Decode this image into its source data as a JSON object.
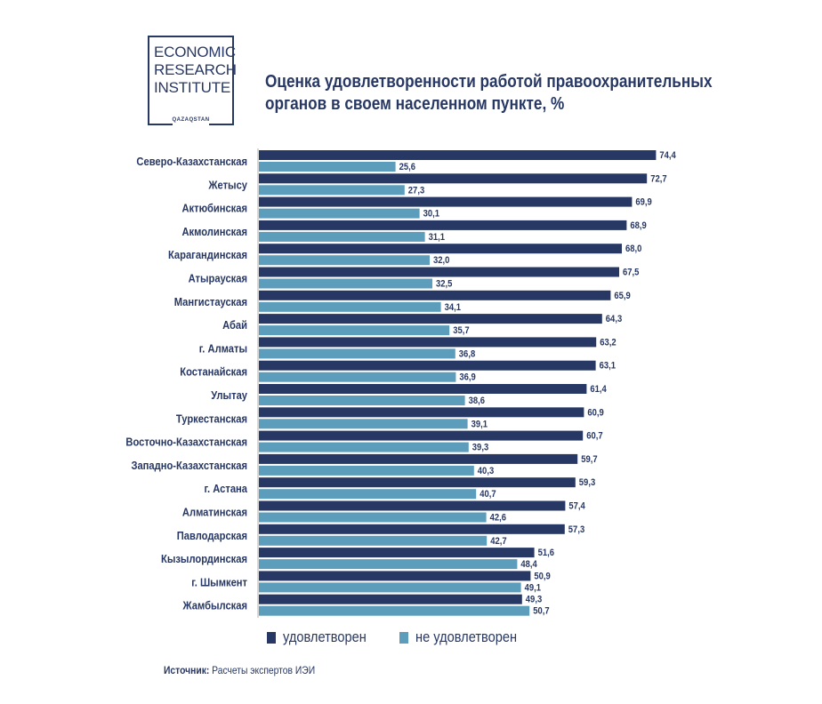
{
  "logo": {
    "lines": [
      "ECONOMIC",
      "RESEARCH",
      "INSTITUTE"
    ],
    "sub": "QAZAQSTAN"
  },
  "title_lines": [
    "Оценка удовлетворенности работой правоохранительных",
    "органов в своем населенном пункте, %"
  ],
  "source": {
    "label": "Источник:",
    "text": "Расчеты экспертов ИЭИ"
  },
  "colors": {
    "satisfied": "#283864",
    "not_satisfied": "#5b9dba",
    "text": "#283864",
    "axis": "#b0b0b0"
  },
  "chart_data": {
    "type": "bar",
    "orientation": "horizontal",
    "title": "Оценка удовлетворенности работой правоохранительных органов в своем населенном пункте, %",
    "categories": [
      "Северо-Казахстанская",
      "Жетысу",
      "Актюбинская",
      "Акмолинская",
      "Карагандинская",
      "Атырауская",
      "Мангистауская",
      "Абай",
      "г. Алматы",
      "Костанайская",
      "Улытау",
      "Туркестанская",
      "Восточно-Казахстанская",
      "Западно-Казахстанская",
      "г. Астана",
      "Алматинская",
      "Павлодарская",
      "Кызылординская",
      "г. Шымкент",
      "Жамбылская"
    ],
    "series": [
      {
        "name": "удовлетворен",
        "values": [
          74.4,
          72.7,
          69.9,
          68.9,
          68.0,
          67.5,
          65.9,
          64.3,
          63.2,
          63.1,
          61.4,
          60.9,
          60.7,
          59.7,
          59.3,
          57.4,
          57.3,
          51.6,
          50.9,
          49.3
        ],
        "labels": [
          "74,4",
          "72,7",
          "69,9",
          "68,9",
          "68,0",
          "67,5",
          "65,9",
          "64,3",
          "63,2",
          "63,1",
          "61,4",
          "60,9",
          "60,7",
          "59,7",
          "59,3",
          "57,4",
          "57,3",
          "51,6",
          "50,9",
          "49,3"
        ]
      },
      {
        "name": "не удовлетворен",
        "values": [
          25.6,
          27.3,
          30.1,
          31.1,
          32.0,
          32.5,
          34.1,
          35.7,
          36.8,
          36.9,
          38.6,
          39.1,
          39.3,
          40.3,
          40.7,
          42.6,
          42.7,
          48.4,
          49.1,
          50.7
        ],
        "labels": [
          "25,6",
          "27,3",
          "30,1",
          "31,1",
          "32,0",
          "32,5",
          "34,1",
          "35,7",
          "36,8",
          "36,9",
          "38,6",
          "39,1",
          "39,3",
          "40,3",
          "40,7",
          "42,6",
          "42,7",
          "48,4",
          "49,1",
          "50,7"
        ]
      }
    ],
    "xlim": [
      0,
      100
    ],
    "grid": false,
    "legend_position": "bottom"
  }
}
